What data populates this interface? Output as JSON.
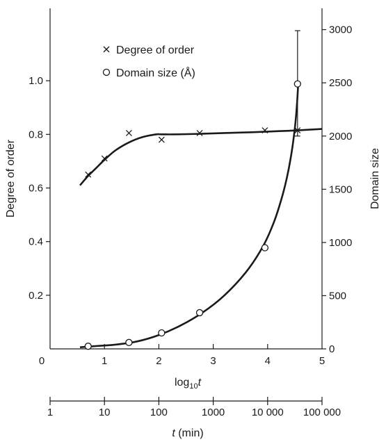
{
  "chart_data": {
    "type": "line",
    "xlabel_prefix": "log",
    "xlabel_sub": "10",
    "xlabel_var": "t",
    "xlim": [
      0,
      5
    ],
    "x_ticks": [
      0,
      1,
      2,
      3,
      4,
      5
    ],
    "x_tick_labels": [
      "0",
      "1",
      "2",
      "3",
      "4",
      "5"
    ],
    "secondary_x": {
      "label_var": "t",
      "label_unit": " (min)",
      "ticks": [
        0,
        1,
        2,
        3,
        4,
        5
      ],
      "tick_labels": [
        "1",
        "10",
        "100",
        "1000",
        "10 000",
        "100 000"
      ]
    },
    "left_axis": {
      "label": "Degree of order",
      "lim": [
        0,
        1.27
      ],
      "ticks": [
        0.2,
        0.4,
        0.6,
        0.8,
        1.0
      ],
      "tick_labels": [
        "0.2",
        "0.4",
        "0.6",
        "0.8",
        "1.0"
      ]
    },
    "right_axis": {
      "label": "Domain size",
      "lim": [
        0,
        3200
      ],
      "ticks": [
        0,
        500,
        1000,
        1500,
        2000,
        2500,
        3000
      ],
      "tick_labels": [
        "0",
        "500",
        "1000",
        "1500",
        "2000",
        "2500",
        "3000"
      ]
    },
    "series": [
      {
        "name": "Degree of order",
        "axis": "left",
        "marker": "x",
        "x": [
          0.7,
          1.0,
          1.45,
          2.05,
          2.75,
          3.95,
          4.55
        ],
        "y": [
          0.65,
          0.71,
          0.805,
          0.78,
          0.805,
          0.815,
          0.815
        ],
        "curve_x": [
          0.55,
          0.7,
          0.85,
          1.0,
          1.2,
          1.45,
          1.7,
          1.95,
          2.05,
          2.3,
          2.75,
          3.2,
          3.7,
          4.2,
          4.55,
          5.0
        ],
        "curve_y": [
          0.61,
          0.645,
          0.675,
          0.705,
          0.74,
          0.77,
          0.79,
          0.8,
          0.8,
          0.8,
          0.802,
          0.805,
          0.808,
          0.812,
          0.815,
          0.82
        ]
      },
      {
        "name": "Domain size (Å)",
        "axis": "right",
        "marker": "o",
        "x": [
          0.7,
          1.45,
          2.05,
          2.75,
          3.95,
          4.55
        ],
        "y": [
          25,
          60,
          150,
          340,
          950,
          2490
        ],
        "error_bar": {
          "x": 4.55,
          "low": 2000,
          "high": 2990
        },
        "curve_x": [
          0.55,
          0.8,
          1.2,
          1.6,
          2.0,
          2.4,
          2.8,
          3.2,
          3.6,
          3.9,
          4.1,
          4.25,
          4.35,
          4.42,
          4.47,
          4.51,
          4.54,
          4.56
        ],
        "curve_y": [
          15,
          25,
          40,
          70,
          130,
          220,
          340,
          500,
          720,
          950,
          1170,
          1400,
          1600,
          1780,
          1950,
          2120,
          2300,
          2470
        ]
      }
    ],
    "legend": {
      "placement": "top-left",
      "entries": [
        {
          "marker": "x",
          "label": "Degree of order"
        },
        {
          "marker": "o",
          "label": "Domain size (Å)"
        }
      ]
    },
    "grid": false
  }
}
